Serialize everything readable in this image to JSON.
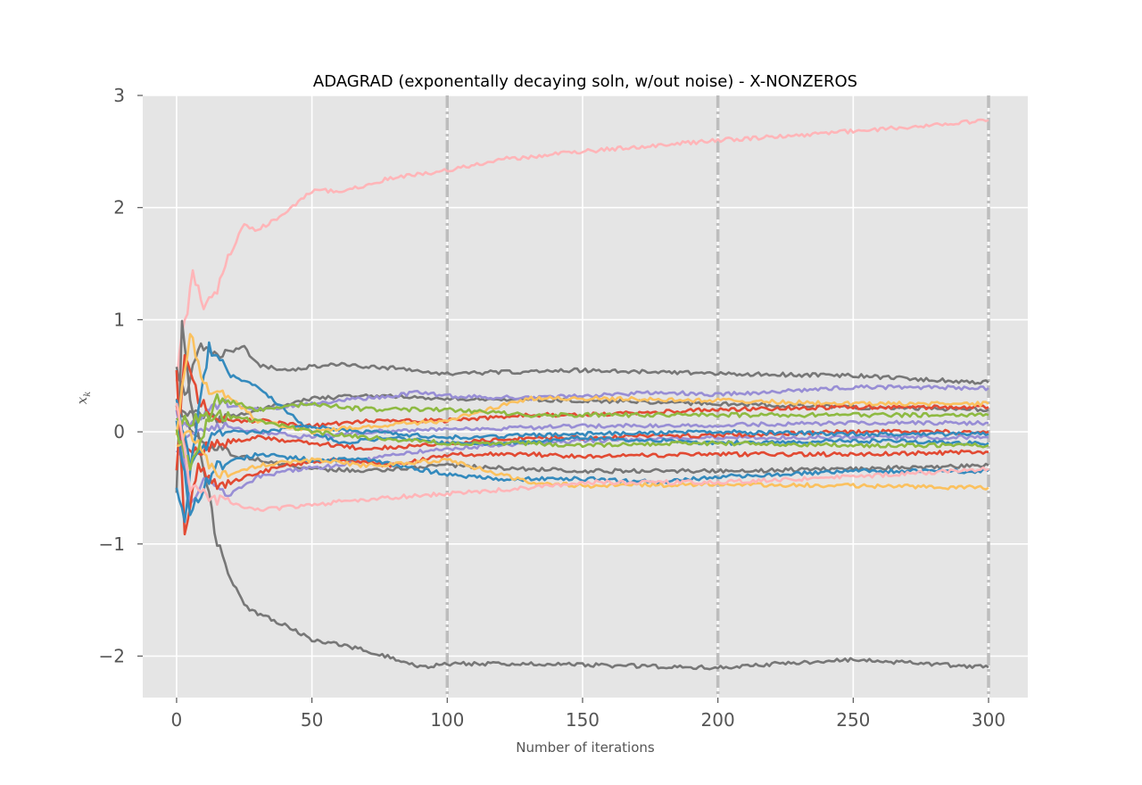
{
  "chart_data": {
    "type": "line",
    "title": "ADAGRAD (exponentally decaying soln, w/out noise) - X-NONZEROS",
    "xlabel": "Number of iterations",
    "ylabel": "x_k",
    "xlim": [
      -12.5,
      314.5
    ],
    "ylim": [
      -2.37,
      3.0
    ],
    "x_ticks": [
      0,
      50,
      100,
      150,
      200,
      250,
      300
    ],
    "y_ticks": [
      -2,
      -1,
      0,
      1,
      2,
      3
    ],
    "x_tick_labels": [
      "0",
      "50",
      "100",
      "150",
      "200",
      "250",
      "300"
    ],
    "y_tick_labels": [
      "−2",
      "−1",
      "0",
      "1",
      "2",
      "3"
    ],
    "vlines": [
      100,
      200,
      300
    ],
    "grid": true,
    "background": "#e5e5e5",
    "style": "ggplot",
    "series": [
      {
        "color": "#ffb5b8",
        "points": [
          [
            0,
            0.5
          ],
          [
            2,
            0.85
          ],
          [
            4,
            1.1
          ],
          [
            6,
            1.4
          ],
          [
            8,
            1.3
          ],
          [
            10,
            1.1
          ],
          [
            15,
            1.25
          ],
          [
            20,
            1.6
          ],
          [
            25,
            1.85
          ],
          [
            30,
            1.8
          ],
          [
            40,
            1.95
          ],
          [
            50,
            2.15
          ],
          [
            60,
            2.15
          ],
          [
            70,
            2.2
          ],
          [
            80,
            2.27
          ],
          [
            100,
            2.33
          ],
          [
            120,
            2.43
          ],
          [
            150,
            2.5
          ],
          [
            200,
            2.6
          ],
          [
            250,
            2.68
          ],
          [
            300,
            2.78
          ]
        ]
      },
      {
        "color": "#777777",
        "points": [
          [
            0,
            -0.5
          ],
          [
            2,
            1.0
          ],
          [
            5,
            0.3
          ],
          [
            10,
            -0.3
          ],
          [
            15,
            -1.0
          ],
          [
            20,
            -1.3
          ],
          [
            25,
            -1.55
          ],
          [
            30,
            -1.62
          ],
          [
            40,
            -1.72
          ],
          [
            50,
            -1.85
          ],
          [
            60,
            -1.9
          ],
          [
            70,
            -1.95
          ],
          [
            80,
            -2.02
          ],
          [
            90,
            -2.1
          ],
          [
            100,
            -2.07
          ],
          [
            130,
            -2.07
          ],
          [
            150,
            -2.08
          ],
          [
            200,
            -2.1
          ],
          [
            250,
            -2.03
          ],
          [
            300,
            -2.1
          ]
        ]
      },
      {
        "color": "#777777",
        "points": [
          [
            0,
            0.6
          ],
          [
            3,
            0.3
          ],
          [
            8,
            0.75
          ],
          [
            15,
            0.7
          ],
          [
            25,
            0.75
          ],
          [
            30,
            0.6
          ],
          [
            40,
            0.55
          ],
          [
            50,
            0.58
          ],
          [
            60,
            0.6
          ],
          [
            80,
            0.57
          ],
          [
            100,
            0.52
          ],
          [
            150,
            0.55
          ],
          [
            200,
            0.52
          ],
          [
            250,
            0.5
          ],
          [
            300,
            0.44
          ]
        ]
      },
      {
        "color": "#777777",
        "points": [
          [
            0,
            0.3
          ],
          [
            5,
            0.0
          ],
          [
            10,
            -0.1
          ],
          [
            20,
            -0.2
          ],
          [
            30,
            -0.25
          ],
          [
            40,
            -0.3
          ],
          [
            50,
            -0.33
          ],
          [
            70,
            -0.35
          ],
          [
            100,
            -0.3
          ],
          [
            150,
            -0.35
          ],
          [
            200,
            -0.35
          ],
          [
            250,
            -0.33
          ],
          [
            300,
            -0.3
          ]
        ]
      },
      {
        "color": "#777777",
        "points": [
          [
            0,
            0.1
          ],
          [
            5,
            0.2
          ],
          [
            15,
            0.1
          ],
          [
            30,
            0.2
          ],
          [
            50,
            0.3
          ],
          [
            70,
            0.32
          ],
          [
            100,
            0.3
          ],
          [
            150,
            0.28
          ],
          [
            200,
            0.25
          ],
          [
            250,
            0.22
          ],
          [
            300,
            0.2
          ]
        ]
      },
      {
        "color": "#988ed5",
        "points": [
          [
            0,
            0.2
          ],
          [
            5,
            -0.6
          ],
          [
            10,
            -0.45
          ],
          [
            20,
            -0.55
          ],
          [
            30,
            -0.4
          ],
          [
            40,
            -0.35
          ],
          [
            60,
            -0.3
          ],
          [
            80,
            -0.2
          ],
          [
            100,
            -0.15
          ],
          [
            130,
            -0.1
          ],
          [
            150,
            -0.08
          ],
          [
            200,
            -0.05
          ],
          [
            250,
            -0.05
          ],
          [
            300,
            -0.05
          ]
        ]
      },
      {
        "color": "#988ed5",
        "points": [
          [
            0,
            0.0
          ],
          [
            5,
            0.1
          ],
          [
            15,
            0.25
          ],
          [
            30,
            0.2
          ],
          [
            50,
            0.25
          ],
          [
            70,
            0.3
          ],
          [
            90,
            0.35
          ],
          [
            100,
            0.32
          ],
          [
            130,
            0.3
          ],
          [
            150,
            0.32
          ],
          [
            180,
            0.35
          ],
          [
            200,
            0.33
          ],
          [
            250,
            0.4
          ],
          [
            300,
            0.39
          ]
        ]
      },
      {
        "color": "#988ed5",
        "points": [
          [
            0,
            -0.2
          ],
          [
            5,
            0.0
          ],
          [
            15,
            0.05
          ],
          [
            30,
            0.0
          ],
          [
            50,
            -0.05
          ],
          [
            70,
            0.0
          ],
          [
            100,
            0.02
          ],
          [
            150,
            0.05
          ],
          [
            200,
            0.06
          ],
          [
            250,
            0.08
          ],
          [
            300,
            0.08
          ]
        ]
      },
      {
        "color": "#e24a33",
        "points": [
          [
            0,
            0.5
          ],
          [
            3,
            -0.9
          ],
          [
            8,
            -0.3
          ],
          [
            15,
            -0.5
          ],
          [
            25,
            -0.4
          ],
          [
            40,
            -0.3
          ],
          [
            60,
            -0.25
          ],
          [
            80,
            -0.3
          ],
          [
            100,
            -0.2
          ],
          [
            130,
            -0.2
          ],
          [
            150,
            -0.22
          ],
          [
            200,
            -0.2
          ],
          [
            250,
            -0.2
          ],
          [
            300,
            -0.18
          ]
        ]
      },
      {
        "color": "#e24a33",
        "points": [
          [
            0,
            -0.3
          ],
          [
            3,
            0.7
          ],
          [
            8,
            0.3
          ],
          [
            15,
            0.1
          ],
          [
            30,
            0.1
          ],
          [
            50,
            0.05
          ],
          [
            70,
            0.1
          ],
          [
            100,
            0.1
          ],
          [
            130,
            0.15
          ],
          [
            150,
            0.15
          ],
          [
            200,
            0.2
          ],
          [
            250,
            0.22
          ],
          [
            300,
            0.22
          ]
        ]
      },
      {
        "color": "#e24a33",
        "points": [
          [
            0,
            0.2
          ],
          [
            5,
            -0.2
          ],
          [
            15,
            -0.1
          ],
          [
            30,
            -0.05
          ],
          [
            50,
            -0.1
          ],
          [
            70,
            -0.15
          ],
          [
            100,
            -0.1
          ],
          [
            130,
            -0.05
          ],
          [
            150,
            -0.05
          ],
          [
            200,
            -0.03
          ],
          [
            250,
            0.0
          ],
          [
            300,
            0.0
          ]
        ]
      },
      {
        "color": "#348abd",
        "points": [
          [
            0,
            -0.5
          ],
          [
            3,
            -0.8
          ],
          [
            8,
            0.2
          ],
          [
            12,
            0.75
          ],
          [
            20,
            0.5
          ],
          [
            30,
            0.4
          ],
          [
            40,
            0.2
          ],
          [
            50,
            0.0
          ],
          [
            60,
            -0.1
          ],
          [
            80,
            -0.05
          ],
          [
            100,
            -0.1
          ],
          [
            130,
            -0.1
          ],
          [
            150,
            -0.05
          ],
          [
            200,
            -0.1
          ],
          [
            250,
            -0.08
          ],
          [
            300,
            -0.1
          ]
        ]
      },
      {
        "color": "#348abd",
        "points": [
          [
            0,
            0.3
          ],
          [
            5,
            -0.3
          ],
          [
            15,
            0.0
          ],
          [
            30,
            0.0
          ],
          [
            50,
            0.05
          ],
          [
            70,
            0.0
          ],
          [
            100,
            -0.05
          ],
          [
            150,
            -0.02
          ],
          [
            200,
            0.0
          ],
          [
            250,
            -0.02
          ],
          [
            300,
            -0.02
          ]
        ]
      },
      {
        "color": "#348abd",
        "points": [
          [
            0,
            0.1
          ],
          [
            5,
            -0.7
          ],
          [
            15,
            -0.3
          ],
          [
            30,
            -0.2
          ],
          [
            50,
            -0.25
          ],
          [
            70,
            -0.25
          ],
          [
            100,
            -0.38
          ],
          [
            120,
            -0.42
          ],
          [
            150,
            -0.42
          ],
          [
            180,
            -0.45
          ],
          [
            200,
            -0.4
          ],
          [
            250,
            -0.35
          ],
          [
            300,
            -0.35
          ]
        ]
      },
      {
        "color": "#fbc15e",
        "points": [
          [
            0,
            0.0
          ],
          [
            5,
            0.9
          ],
          [
            10,
            0.4
          ],
          [
            20,
            0.3
          ],
          [
            30,
            0.1
          ],
          [
            50,
            0.0
          ],
          [
            70,
            0.05
          ],
          [
            100,
            0.1
          ],
          [
            130,
            0.3
          ],
          [
            150,
            0.3
          ],
          [
            200,
            0.28
          ],
          [
            250,
            0.25
          ],
          [
            300,
            0.25
          ]
        ]
      },
      {
        "color": "#fbc15e",
        "points": [
          [
            0,
            -0.1
          ],
          [
            5,
            0.0
          ],
          [
            15,
            -0.4
          ],
          [
            30,
            -0.3
          ],
          [
            50,
            -0.25
          ],
          [
            70,
            -0.3
          ],
          [
            100,
            -0.25
          ],
          [
            130,
            -0.45
          ],
          [
            150,
            -0.48
          ],
          [
            200,
            -0.47
          ],
          [
            250,
            -0.48
          ],
          [
            300,
            -0.5
          ]
        ]
      },
      {
        "color": "#8eba42",
        "points": [
          [
            0,
            0.0
          ],
          [
            5,
            -0.3
          ],
          [
            15,
            0.3
          ],
          [
            30,
            0.2
          ],
          [
            50,
            0.25
          ],
          [
            70,
            0.2
          ],
          [
            100,
            0.2
          ],
          [
            130,
            0.15
          ],
          [
            150,
            0.15
          ],
          [
            200,
            0.15
          ],
          [
            250,
            0.15
          ],
          [
            300,
            0.15
          ]
        ]
      },
      {
        "color": "#8eba42",
        "points": [
          [
            0,
            0.1
          ],
          [
            5,
            0.1
          ],
          [
            15,
            0.15
          ],
          [
            30,
            0.1
          ],
          [
            50,
            0.0
          ],
          [
            70,
            -0.05
          ],
          [
            100,
            -0.1
          ],
          [
            130,
            -0.1
          ],
          [
            150,
            -0.12
          ],
          [
            200,
            -0.1
          ],
          [
            250,
            -0.12
          ],
          [
            300,
            -0.12
          ]
        ]
      },
      {
        "color": "#ffb5b8",
        "points": [
          [
            0,
            0.3
          ],
          [
            5,
            -0.5
          ],
          [
            15,
            -0.6
          ],
          [
            30,
            -0.7
          ],
          [
            50,
            -0.65
          ],
          [
            70,
            -0.6
          ],
          [
            100,
            -0.55
          ],
          [
            130,
            -0.5
          ],
          [
            150,
            -0.45
          ],
          [
            200,
            -0.45
          ],
          [
            250,
            -0.4
          ],
          [
            300,
            -0.33
          ]
        ]
      }
    ]
  }
}
